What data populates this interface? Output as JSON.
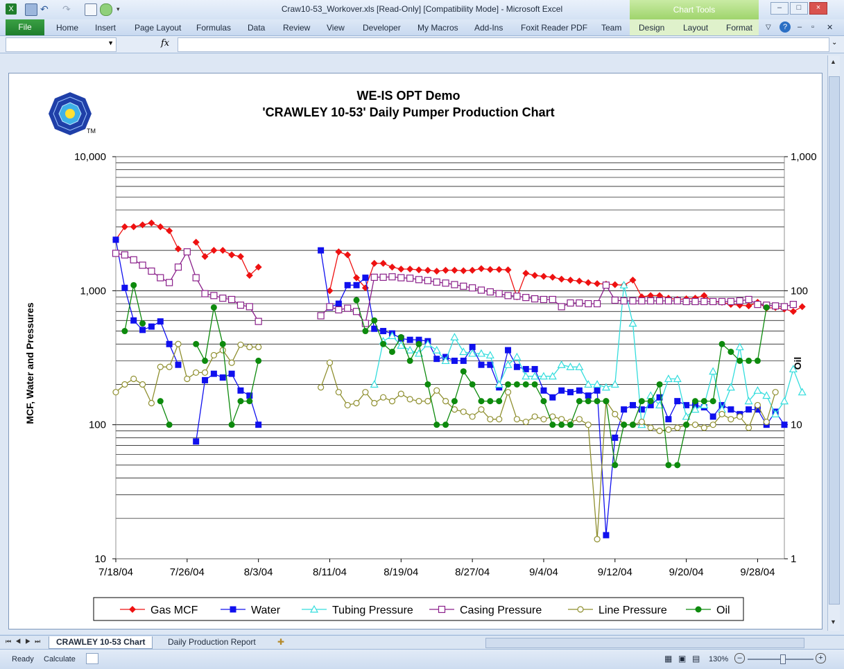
{
  "window": {
    "title": "Craw10-53_Workover.xls  [Read-Only]  [Compatibility Mode]  -  Microsoft Excel",
    "chart_tools_label": "Chart Tools"
  },
  "ribbon": {
    "file_tab": "File",
    "tabs": [
      "Home",
      "Insert",
      "Page Layout",
      "Formulas",
      "Data",
      "Review",
      "View",
      "Developer",
      "My Macros",
      "Add-Ins",
      "Foxit Reader PDF",
      "Team",
      "Design",
      "Layout",
      "Format"
    ]
  },
  "formula_bar": {
    "name_box": "",
    "fx_label": "fx",
    "formula": ""
  },
  "sheets": [
    "CRAWLEY 10-53 Chart",
    "Daily Production Report"
  ],
  "status": {
    "ready": "Ready",
    "calculate": "Calculate",
    "zoom": "130%"
  },
  "chart_data": {
    "type": "line",
    "title": "WE-IS OPT Demo",
    "subtitle": "'CRAWLEY 10-53' Daily Pumper Production Chart",
    "trademark": "TM",
    "ylabel": "MCF, Water and Pressures",
    "y2label": "Oil",
    "yscale": "log",
    "ylim": [
      10,
      10000
    ],
    "y2lim": [
      1,
      1000
    ],
    "yticks": [
      "10",
      "100",
      "1,000",
      "10,000"
    ],
    "y2ticks": [
      "1",
      "10",
      "100",
      "1,000"
    ],
    "xlim": [
      "2004-07-18",
      "2004-10-01"
    ],
    "xtick_labels": [
      "7/18/04",
      "7/26/04",
      "8/3/04",
      "8/11/04",
      "8/19/04",
      "8/27/04",
      "9/4/04",
      "9/12/04",
      "9/20/04",
      "9/28/04"
    ],
    "grid": true,
    "legend_position": "bottom",
    "series": [
      {
        "name": "Gas MCF",
        "axis": "left",
        "color": "#ee1111",
        "marker": "diamond",
        "segments": [
          {
            "start": "2004-07-18",
            "values": [
              2400,
              3000,
              3000,
              3100,
              3200,
              3000,
              2800,
              2050,
              null,
              2300,
              1800,
              2000,
              2000,
              1850,
              1800,
              1300,
              1500
            ]
          },
          {
            "start": "2004-08-11",
            "values": [
              1000,
              1950,
              1850,
              1250,
              1050,
              1600,
              1600,
              1500,
              1450,
              1450,
              1430,
              1420,
              1400,
              1420,
              1420,
              1410,
              1420,
              1460,
              1440,
              1440,
              1430,
              900,
              1350,
              1300,
              1280,
              1260,
              1220,
              1200,
              1180,
              1150,
              1130,
              1120,
              1110,
              1100,
              1200,
              900,
              920,
              920,
              880,
              860,
              870,
              880,
              920,
              830,
              820,
              790,
              780,
              770,
              820,
              740,
              750,
              730,
              700,
              760
            ]
          }
        ]
      },
      {
        "name": "Water",
        "axis": "left",
        "color": "#1010ee",
        "marker": "square",
        "segments": [
          {
            "start": "2004-07-18",
            "values": [
              2400,
              1050,
              600,
              510,
              540,
              590,
              400,
              280,
              null,
              75,
              215,
              240,
              225,
              240,
              180,
              165,
              100
            ]
          },
          {
            "start": "2004-08-10",
            "values": [
              2000,
              750,
              800,
              1100,
              1100,
              1250,
              520,
              500,
              480,
              440,
              430,
              430,
              420,
              310,
              320,
              300,
              300,
              380,
              280,
              280,
              190,
              360,
              270,
              260,
              260,
              180,
              160,
              180,
              175,
              180,
              165,
              180,
              15,
              80,
              130,
              140,
              130,
              140,
              160,
              110,
              150,
              140,
              140,
              135,
              115,
              140,
              130,
              120,
              130,
              130,
              100,
              125,
              100
            ]
          }
        ]
      },
      {
        "name": "Tubing Pressure",
        "axis": "left",
        "color": "#33dddd",
        "marker": "triangle",
        "segments": [
          {
            "start": "2004-08-13",
            "values": [
              null,
              null,
              null,
              200,
              420,
              460,
              390,
              360,
              340,
              400,
              360,
              300,
              450,
              350,
              340,
              340,
              330,
              200,
              280,
              320,
              230,
              230,
              230,
              230,
              280,
              270,
              270,
              200,
              200,
              190,
              200,
              1100,
              570,
              100,
              165,
              140,
              220,
              220,
              115,
              130,
              140,
              250,
              130,
              190,
              380,
              150,
              180,
              165,
              120,
              150,
              260,
              175
            ]
          }
        ]
      },
      {
        "name": "Casing Pressure",
        "axis": "left",
        "color": "#8a1f8a",
        "marker": "square-open",
        "segments": [
          {
            "start": "2004-07-18",
            "values": [
              1900,
              1850,
              1700,
              1550,
              1400,
              1250,
              1150,
              1500,
              1950,
              1250,
              950,
              920,
              880,
              860,
              780,
              760,
              590
            ]
          },
          {
            "start": "2004-08-10",
            "values": [
              650,
              760,
              720,
              740,
              700,
              570,
              1260,
              1260,
              1270,
              1250,
              1240,
              1210,
              1190,
              1160,
              1140,
              1110,
              1080,
              1050,
              1010,
              980,
              950,
              920,
              910,
              890,
              870,
              860,
              860,
              760,
              810,
              810,
              800,
              800,
              1100,
              850,
              840,
              840,
              840,
              840,
              840,
              840,
              840,
              830,
              830,
              830,
              830,
              830,
              830,
              840,
              860,
              790,
              780,
              770,
              760,
              790
            ]
          }
        ]
      },
      {
        "name": "Line Pressure",
        "axis": "left",
        "color": "#8f8f2f",
        "marker": "circle-open",
        "segments": [
          {
            "start": "2004-07-18",
            "values": [
              175,
              200,
              220,
              200,
              145,
              270,
              270,
              400,
              220,
              245,
              245,
              330,
              360,
              290,
              395,
              380,
              380
            ]
          },
          {
            "start": "2004-08-10",
            "values": [
              190,
              290,
              175,
              140,
              145,
              175,
              145,
              160,
              150,
              170,
              155,
              150,
              150,
              180,
              150,
              130,
              125,
              115,
              130,
              110,
              110,
              175,
              110,
              105,
              115,
              110,
              115,
              110,
              105,
              110,
              100,
              14,
              150,
              120,
              100,
              100,
              105,
              95,
              90,
              92,
              95,
              100,
              100,
              95,
              100,
              120,
              110,
              115,
              95,
              140,
              105,
              175
            ]
          }
        ]
      },
      {
        "name": "Oil",
        "axis": "right",
        "color": "#0d8a0d",
        "marker": "circle",
        "segments": [
          {
            "start": "2004-07-18",
            "values": [
              null,
              50,
              110,
              57,
              null,
              15,
              10,
              null,
              null,
              40,
              30,
              75,
              40,
              10,
              15,
              15,
              30
            ]
          },
          {
            "start": "2004-08-13",
            "values": [
              null,
              85,
              50,
              60,
              40,
              35,
              45,
              30,
              40,
              20,
              10,
              10,
              15,
              25,
              20,
              15,
              15,
              15,
              20,
              20,
              20,
              20,
              15,
              10,
              10,
              10,
              15,
              15,
              15,
              15,
              5,
              10,
              10,
              15,
              15,
              20,
              5,
              5,
              10,
              15,
              15,
              15,
              40,
              35,
              30,
              30,
              30,
              75
            ]
          }
        ]
      }
    ]
  }
}
